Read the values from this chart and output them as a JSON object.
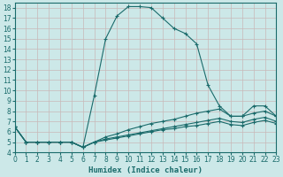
{
  "title": "",
  "xlabel": "Humidex (Indice chaleur)",
  "ylabel": "",
  "background_color": "#cce8e8",
  "grid_color": "#b0d8d8",
  "line_color": "#1a6b6b",
  "xlim": [
    0,
    23
  ],
  "ylim": [
    4,
    18.5
  ],
  "yticks": [
    4,
    5,
    6,
    7,
    8,
    9,
    10,
    11,
    12,
    13,
    14,
    15,
    16,
    17,
    18
  ],
  "xticks": [
    0,
    1,
    2,
    3,
    4,
    5,
    6,
    7,
    8,
    9,
    10,
    11,
    12,
    13,
    14,
    15,
    16,
    17,
    18,
    19,
    20,
    21,
    22,
    23
  ],
  "series": [
    [
      6.5,
      5.0,
      5.0,
      5.0,
      5.0,
      5.0,
      4.5,
      9.5,
      15.0,
      17.2,
      18.1,
      18.1,
      18.0,
      17.0,
      16.0,
      15.5,
      14.5,
      10.5,
      8.5,
      7.5,
      7.5,
      8.5,
      8.5,
      7.5
    ],
    [
      6.5,
      5.0,
      5.0,
      5.0,
      5.0,
      5.0,
      4.5,
      5.0,
      5.5,
      5.8,
      6.2,
      6.5,
      6.8,
      7.0,
      7.2,
      7.5,
      7.8,
      8.0,
      8.2,
      7.5,
      7.5,
      7.8,
      8.0,
      7.5
    ],
    [
      6.5,
      5.0,
      5.0,
      5.0,
      5.0,
      5.0,
      4.5,
      5.0,
      5.3,
      5.5,
      5.7,
      5.9,
      6.1,
      6.3,
      6.5,
      6.7,
      6.9,
      7.1,
      7.3,
      7.0,
      6.9,
      7.2,
      7.4,
      7.0
    ],
    [
      6.5,
      5.0,
      5.0,
      5.0,
      5.0,
      5.0,
      4.5,
      5.0,
      5.2,
      5.4,
      5.6,
      5.8,
      6.0,
      6.2,
      6.3,
      6.5,
      6.6,
      6.8,
      7.0,
      6.7,
      6.6,
      6.9,
      7.1,
      6.8
    ]
  ]
}
